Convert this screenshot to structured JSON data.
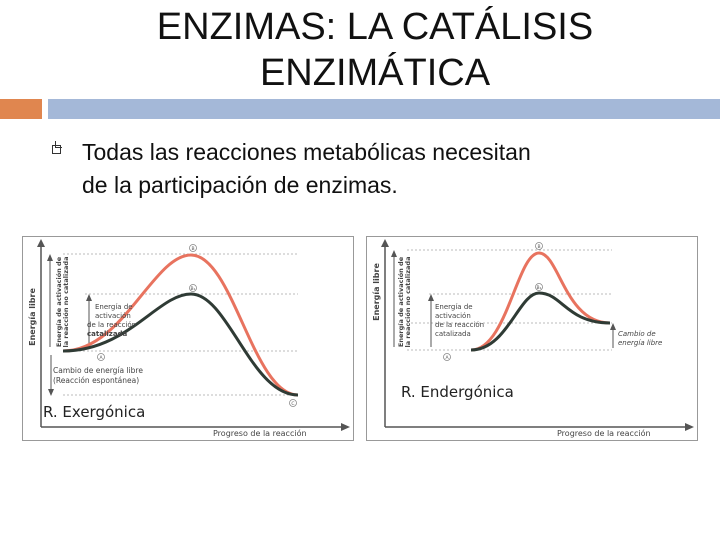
{
  "slide": {
    "title_line1": "ENZIMAS: LA CATÁLISIS",
    "title_line2": "ENZIMÁTICA",
    "bullet_line1": "Todas las reacciones metabólicas necesitan",
    "bullet_line2": "de la participación de enzimas."
  },
  "diagrams": {
    "y_axis_label": "Energía libre",
    "x_axis_label": "Progreso de la reacción",
    "uncatalyzed_label_1": "Energía de activación de",
    "uncatalyzed_label_2": "la reacción no catalizada",
    "catalyzed_label_1": "Energía de",
    "catalyzed_label_2": "activación",
    "catalyzed_label_3": "de la reacción",
    "catalyzed_label_4": "catalizada",
    "point_a": "A",
    "point_b": "B",
    "point_b2": "B₁",
    "point_c": "C",
    "left": {
      "free_energy_change_1": "Cambio de energía libre",
      "free_energy_change_2": "(Reacción espontánea)",
      "caption": "R. Exergónica"
    },
    "right": {
      "free_energy_change_1": "Cambio de",
      "free_energy_change_2": "energía libre",
      "caption": "R. Endergónica"
    },
    "colors": {
      "uncatalyzed_curve": "#e8735f",
      "catalyzed_curve": "#2f3b35",
      "axis": "#555555"
    }
  }
}
